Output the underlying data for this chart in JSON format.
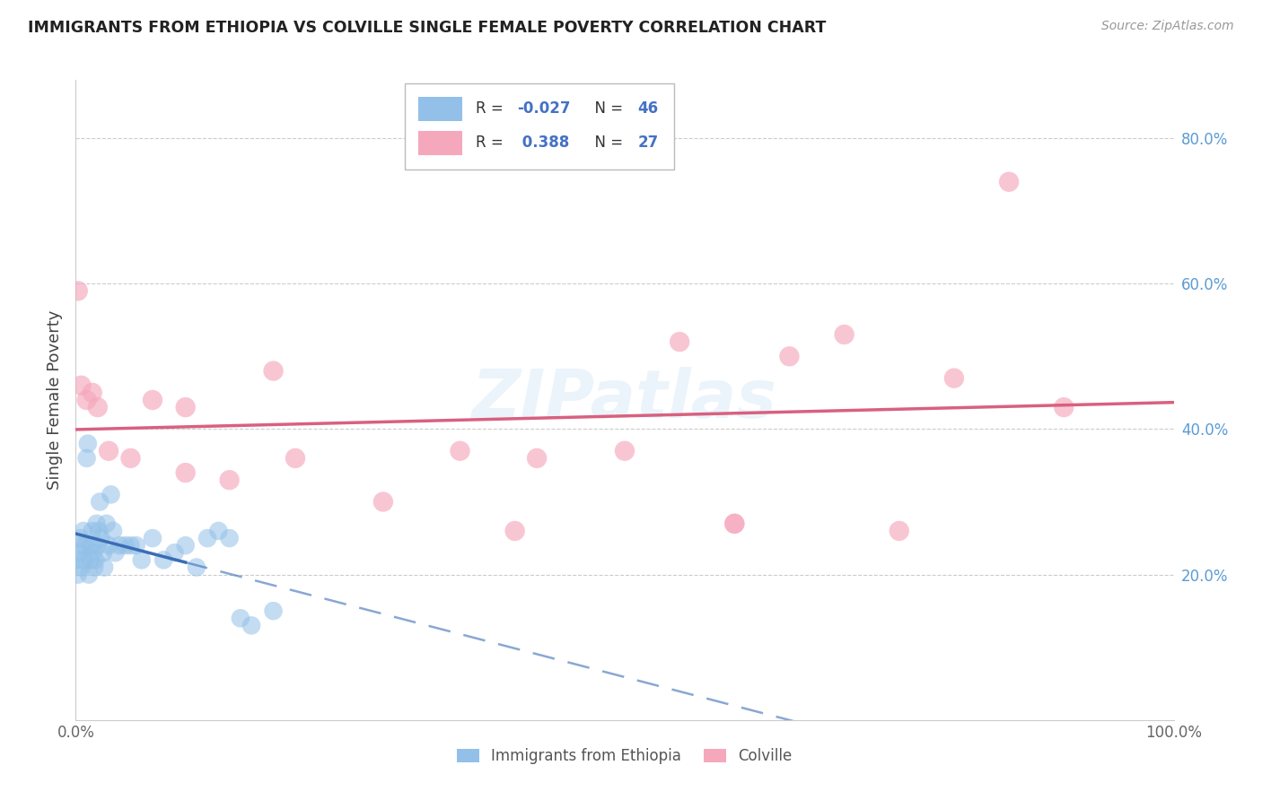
{
  "title": "IMMIGRANTS FROM ETHIOPIA VS COLVILLE SINGLE FEMALE POVERTY CORRELATION CHART",
  "source": "Source: ZipAtlas.com",
  "ylabel": "Single Female Poverty",
  "legend1_label": "Immigrants from Ethiopia",
  "legend2_label": "Colville",
  "R1": "-0.027",
  "N1": "46",
  "R2": "0.388",
  "N2": "27",
  "blue_color": "#92C0E8",
  "pink_color": "#F5A8BC",
  "blue_line_color": "#3B6DB5",
  "pink_line_color": "#D96080",
  "background_color": "#FFFFFF",
  "watermark": "ZIPatlas",
  "blue_scatter_x": [
    0.1,
    0.2,
    0.3,
    0.4,
    0.5,
    0.6,
    0.7,
    0.8,
    0.9,
    1.0,
    1.1,
    1.2,
    1.3,
    1.4,
    1.5,
    1.6,
    1.7,
    1.8,
    1.9,
    2.0,
    2.1,
    2.2,
    2.3,
    2.5,
    2.6,
    2.8,
    3.0,
    3.2,
    3.4,
    3.6,
    4.0,
    4.5,
    5.0,
    5.5,
    6.0,
    7.0,
    8.0,
    9.0,
    10.0,
    11.0,
    12.0,
    13.0,
    14.0,
    15.0,
    16.0,
    18.0
  ],
  "blue_scatter_y": [
    22.0,
    20.0,
    23.0,
    25.0,
    21.0,
    24.0,
    26.0,
    22.0,
    24.0,
    36.0,
    38.0,
    20.0,
    22.0,
    24.0,
    26.0,
    23.0,
    21.0,
    22.0,
    27.0,
    24.0,
    26.0,
    30.0,
    25.0,
    23.0,
    21.0,
    27.0,
    24.0,
    31.0,
    26.0,
    23.0,
    24.0,
    24.0,
    24.0,
    24.0,
    22.0,
    25.0,
    22.0,
    23.0,
    24.0,
    21.0,
    25.0,
    26.0,
    25.0,
    14.0,
    13.0,
    15.0
  ],
  "pink_scatter_x": [
    0.2,
    0.5,
    1.0,
    1.5,
    2.0,
    3.0,
    5.0,
    7.0,
    10.0,
    14.0,
    20.0,
    28.0,
    35.0,
    42.0,
    50.0,
    55.0,
    60.0,
    65.0,
    70.0,
    75.0,
    80.0,
    85.0,
    90.0,
    10.0,
    18.0,
    40.0,
    60.0
  ],
  "pink_scatter_y": [
    59.0,
    46.0,
    44.0,
    45.0,
    43.0,
    37.0,
    36.0,
    44.0,
    34.0,
    33.0,
    36.0,
    30.0,
    37.0,
    36.0,
    37.0,
    52.0,
    27.0,
    50.0,
    53.0,
    26.0,
    47.0,
    74.0,
    43.0,
    43.0,
    48.0,
    26.0,
    27.0
  ],
  "blue_solid_end_x": 10.0,
  "xlim": [
    0,
    100
  ],
  "ylim": [
    0,
    88
  ],
  "yticks": [
    20,
    40,
    60,
    80
  ],
  "ytick_labels": [
    "20.0%",
    "40.0%",
    "60.0%",
    "80.0%"
  ],
  "xtick_labels": [
    "0.0%",
    "100.0%"
  ]
}
